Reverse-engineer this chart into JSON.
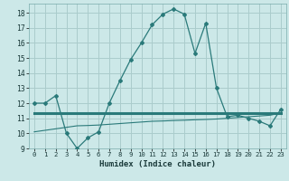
{
  "title": "",
  "xlabel": "Humidex (Indice chaleur)",
  "bg_color": "#cce8e8",
  "grid_color": "#aacccc",
  "line_color": "#2a7a7a",
  "xlim": [
    -0.5,
    23.5
  ],
  "ylim": [
    9,
    18.6
  ],
  "xticks": [
    0,
    1,
    2,
    3,
    4,
    5,
    6,
    7,
    8,
    9,
    10,
    11,
    12,
    13,
    14,
    15,
    16,
    17,
    18,
    19,
    20,
    21,
    22,
    23
  ],
  "yticks": [
    9,
    10,
    11,
    12,
    13,
    14,
    15,
    16,
    17,
    18
  ],
  "curve1_x": [
    0,
    1,
    2,
    3,
    4,
    5,
    6,
    7,
    8,
    9,
    10,
    11,
    12,
    13,
    14,
    15,
    16,
    17,
    18,
    19,
    20,
    21,
    22,
    23
  ],
  "curve1_y": [
    12.0,
    12.0,
    12.5,
    10.0,
    9.0,
    9.7,
    10.1,
    12.0,
    13.5,
    14.9,
    16.0,
    17.2,
    17.9,
    18.25,
    17.9,
    15.3,
    17.3,
    13.0,
    11.1,
    11.2,
    11.0,
    10.8,
    10.5,
    11.6
  ],
  "curve2_x": [
    0,
    23
  ],
  "curve2_y": [
    11.35,
    11.35
  ],
  "curve3_x": [
    0,
    1,
    2,
    3,
    4,
    5,
    6,
    7,
    8,
    9,
    10,
    11,
    12,
    13,
    14,
    15,
    16,
    17,
    18,
    19,
    20,
    21,
    22,
    23
  ],
  "curve3_y": [
    10.1,
    10.2,
    10.3,
    10.4,
    10.5,
    10.52,
    10.55,
    10.6,
    10.65,
    10.7,
    10.75,
    10.8,
    10.82,
    10.85,
    10.87,
    10.9,
    10.92,
    10.95,
    11.0,
    11.05,
    11.1,
    11.15,
    11.2,
    11.35
  ]
}
